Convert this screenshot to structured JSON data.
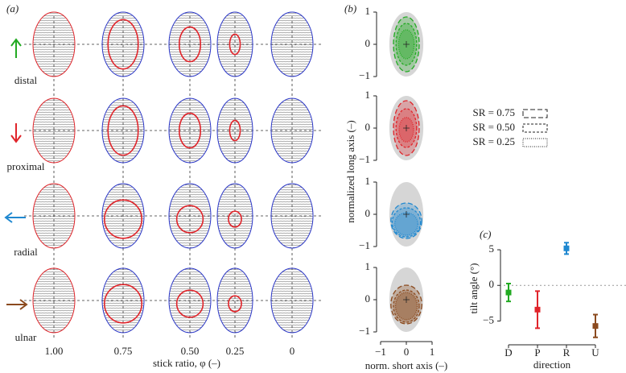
{
  "panel_a": {
    "label": "(a)",
    "x_label": "stick ratio, φ (–)",
    "x_ticks": [
      "1.00",
      "0.75",
      "0.50",
      "0.25",
      "0"
    ],
    "directions": [
      {
        "name": "distal",
        "color": "#22aa22"
      },
      {
        "name": "proximal",
        "color": "#e0242a"
      },
      {
        "name": "radial",
        "color": "#1f88d0"
      },
      {
        "name": "ulnar",
        "color": "#8b4a1e"
      }
    ]
  },
  "panel_b": {
    "label": "(b)",
    "y_label": "normalized long axis (–)",
    "x_label": "norm. short axis (–)",
    "xlim": [
      -1.3,
      1.3
    ],
    "ylim": [
      -1,
      1
    ],
    "xticks": [
      {
        "value": -1,
        "label": "−1"
      },
      0,
      1
    ],
    "yticks": [
      {
        "value": -1,
        "label": "−1"
      },
      0,
      1
    ],
    "legend": [
      "SR = 0.75",
      "SR = 0.50",
      "SR = 0.25"
    ],
    "rows": [
      {
        "ellipses": [
          {
            "rx": 0.5,
            "ry": 0.85,
            "cy": 0
          },
          {
            "rx": 0.4,
            "ry": 0.65,
            "cy": 0
          },
          {
            "rx": 0.3,
            "ry": 0.45,
            "cy": 0
          }
        ]
      },
      {
        "ellipses": [
          {
            "rx": 0.5,
            "ry": 0.85,
            "cy": 0
          },
          {
            "rx": 0.4,
            "ry": 0.6,
            "cy": 0
          },
          {
            "rx": 0.28,
            "ry": 0.38,
            "cy": -0.05
          }
        ]
      },
      {
        "ellipses": [
          {
            "rx": 0.6,
            "ry": 0.55,
            "cy": -0.2
          },
          {
            "rx": 0.55,
            "ry": 0.45,
            "cy": -0.25
          },
          {
            "rx": 0.45,
            "ry": 0.35,
            "cy": -0.3
          }
        ]
      },
      {
        "ellipses": [
          {
            "rx": 0.6,
            "ry": 0.6,
            "cy": -0.15
          },
          {
            "rx": 0.5,
            "ry": 0.5,
            "cy": -0.2
          },
          {
            "rx": 0.42,
            "ry": 0.42,
            "cy": -0.2
          }
        ]
      }
    ]
  },
  "chart_data": {
    "type": "errorbar",
    "label": "(c)",
    "y_label": "tilt angle (°)",
    "x_label": "direction",
    "categories": [
      "D",
      "P",
      "R",
      "U"
    ],
    "values": [
      -1.0,
      -3.4,
      5.2,
      -5.7
    ],
    "errors": [
      1.25,
      2.6,
      0.8,
      1.6
    ],
    "ylim": [
      -8,
      6.7
    ],
    "yticks": [
      {
        "value": -5,
        "label": "−5"
      },
      0,
      5
    ]
  }
}
